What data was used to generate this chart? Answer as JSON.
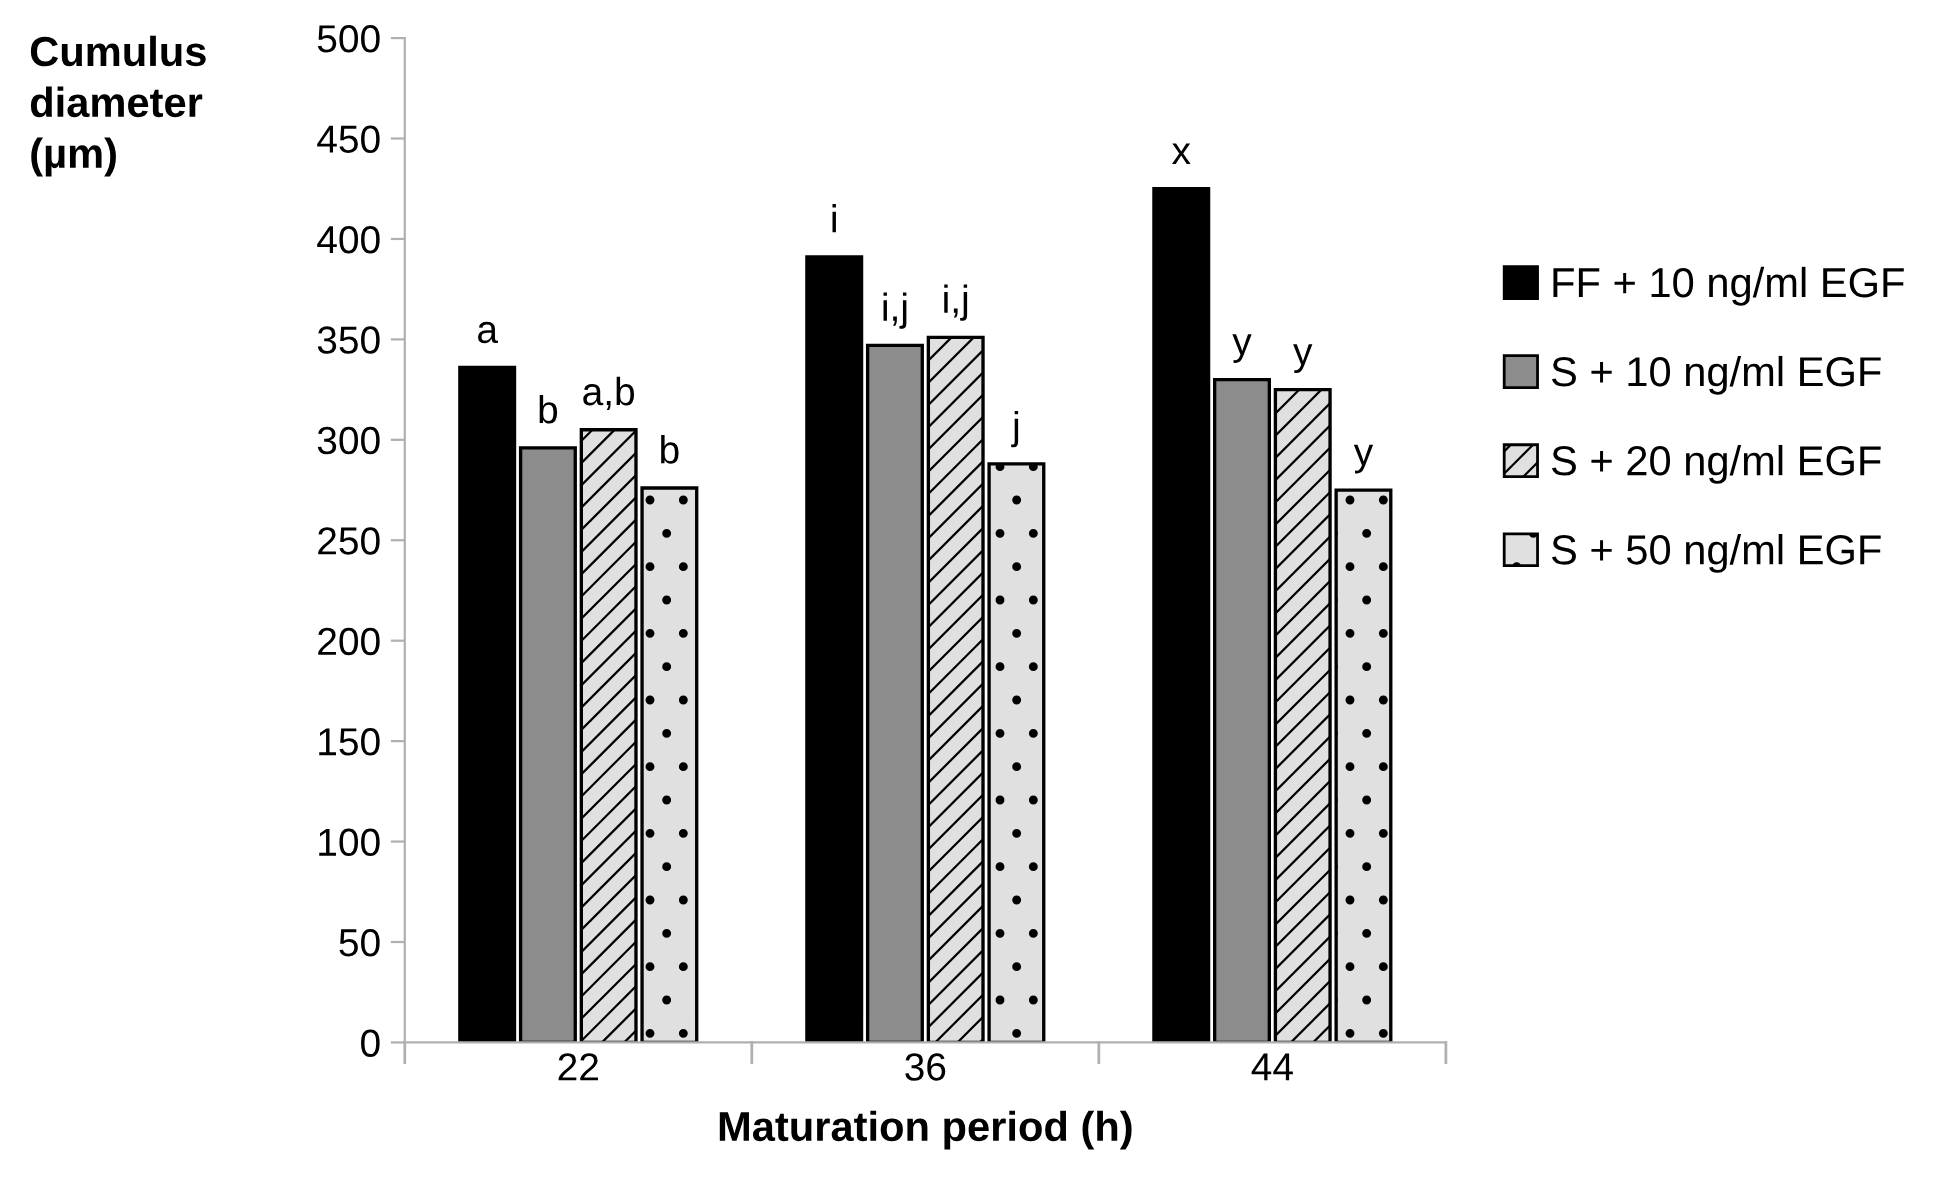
{
  "chart_data": {
    "type": "bar",
    "xlabel": "Maturation period (h)",
    "ylabel": "Cumulus\ndiameter\n(µm)",
    "categories": [
      "22",
      "36",
      "44"
    ],
    "series": [
      {
        "name": "FF + 10 ng/ml EGF",
        "color": "#000000",
        "values": [
          336,
          391,
          425
        ]
      },
      {
        "name": "S + 10 ng/ml EGF",
        "color": "#8c8c8c",
        "values": [
          296,
          347,
          330
        ]
      },
      {
        "name": "S + 20 ng/ml EGF",
        "color": "#e0e0e0",
        "values": [
          305,
          351,
          325
        ]
      },
      {
        "name": "S + 50 ng/ml EGF",
        "color": "#e0e0e0",
        "values": [
          276,
          288,
          275
        ]
      }
    ],
    "ylim": [
      0,
      500
    ],
    "yticks": [
      0,
      50,
      100,
      150,
      200,
      250,
      300,
      350,
      400,
      450,
      500
    ],
    "grid": false,
    "legend": "right",
    "annotations": [
      "a",
      "b",
      "a,b",
      "b",
      "i",
      "i,j",
      "i,j",
      "j",
      "x",
      "y",
      "y",
      "y"
    ]
  }
}
